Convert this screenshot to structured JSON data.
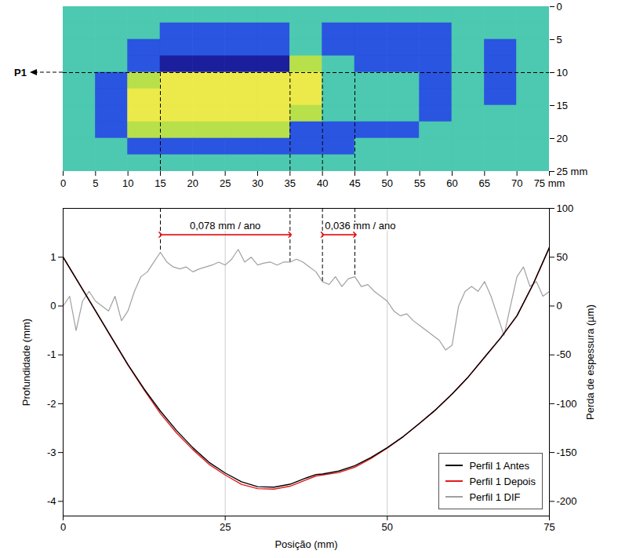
{
  "chart_data": [
    {
      "type": "heatmap",
      "xlim": [
        0,
        75
      ],
      "ylim": [
        0,
        25
      ],
      "xticks": [
        0,
        5,
        10,
        15,
        20,
        25,
        30,
        35,
        40,
        45,
        50,
        55,
        60,
        65,
        70,
        {
          "value": 75,
          "label": "75 mm"
        }
      ],
      "yticks": [
        0,
        5,
        10,
        15,
        20,
        {
          "value": 25,
          "label": "25 mm"
        }
      ],
      "x_bins": [
        0,
        5,
        10,
        15,
        20,
        25,
        30,
        35,
        40,
        45,
        50,
        55,
        60,
        65,
        70,
        75
      ],
      "y_bins": [
        0,
        2.5,
        5,
        7.5,
        10,
        12.5,
        15,
        17.5,
        20,
        22.5,
        25
      ],
      "colors": [
        "#1b1f9e",
        "#2a55e0",
        "#4cc9b0",
        "#b8e04a",
        "#ece94a"
      ],
      "cells": [
        [
          2,
          2,
          2,
          2,
          2,
          2,
          2,
          2,
          2,
          2,
          2,
          2,
          2,
          2,
          2
        ],
        [
          2,
          2,
          2,
          1,
          1,
          1,
          1,
          2,
          1,
          1,
          1,
          1,
          2,
          2,
          2
        ],
        [
          2,
          2,
          1,
          1,
          1,
          1,
          1,
          2,
          1,
          1,
          1,
          1,
          2,
          1,
          2
        ],
        [
          2,
          2,
          1,
          0,
          0,
          0,
          0,
          3,
          2,
          1,
          1,
          1,
          2,
          1,
          2
        ],
        [
          2,
          1,
          3,
          4,
          4,
          4,
          4,
          4,
          2,
          2,
          2,
          1,
          2,
          1,
          2
        ],
        [
          2,
          1,
          4,
          4,
          4,
          4,
          4,
          4,
          2,
          2,
          2,
          1,
          2,
          1,
          2
        ],
        [
          2,
          1,
          4,
          4,
          4,
          4,
          4,
          3,
          2,
          2,
          2,
          1,
          2,
          2,
          2
        ],
        [
          2,
          1,
          3,
          3,
          3,
          3,
          3,
          1,
          1,
          1,
          1,
          2,
          2,
          2,
          2
        ],
        [
          2,
          2,
          1,
          1,
          1,
          1,
          1,
          1,
          1,
          2,
          2,
          2,
          2,
          2,
          2
        ],
        [
          2,
          2,
          2,
          2,
          2,
          2,
          2,
          2,
          2,
          2,
          2,
          2,
          2,
          2,
          2
        ]
      ],
      "reference_line": {
        "label": "P1",
        "y": 10
      },
      "guides": [
        15,
        35,
        40,
        45
      ]
    },
    {
      "type": "line",
      "xlabel": "Posição (mm)",
      "ylabel": "Profundidade (mm)",
      "y2label": "Perda de espessura (µm)",
      "xlim": [
        0,
        75
      ],
      "xticks": [
        0,
        25,
        50,
        75
      ],
      "ylim": [
        -4.3,
        2
      ],
      "yticks": [
        -4,
        -3,
        -2,
        -1,
        0,
        1
      ],
      "y2lim": [
        -215,
        100
      ],
      "y2ticks": [
        -200,
        -150,
        -100,
        -50,
        0,
        50,
        100
      ],
      "grid": true,
      "legend": "lower right",
      "series": [
        {
          "name": "Perfil 1 Antes",
          "color": "#000000",
          "x": [
            0,
            2.5,
            5,
            7.5,
            10,
            12.5,
            15,
            17.5,
            20,
            22.5,
            25,
            27.5,
            30,
            32.5,
            35,
            37.5,
            39,
            40,
            42.5,
            45,
            47.5,
            50,
            52.5,
            55,
            57.5,
            60,
            62.5,
            65,
            67.5,
            70,
            72.5,
            75
          ],
          "values": [
            1.0,
            0.45,
            -0.1,
            -0.65,
            -1.2,
            -1.7,
            -2.15,
            -2.55,
            -2.9,
            -3.2,
            -3.42,
            -3.6,
            -3.7,
            -3.71,
            -3.65,
            -3.52,
            -3.45,
            -3.44,
            -3.38,
            -3.27,
            -3.1,
            -2.9,
            -2.67,
            -2.4,
            -2.12,
            -1.8,
            -1.45,
            -1.05,
            -0.65,
            -0.2,
            0.45,
            1.2
          ]
        },
        {
          "name": "Perfil 1 Depois",
          "color": "#e31a1c",
          "x": [
            0,
            2.5,
            5,
            7.5,
            10,
            12.5,
            15,
            17.5,
            20,
            22.5,
            25,
            27.5,
            30,
            32.5,
            35,
            37.5,
            39,
            40,
            42.5,
            45,
            47.5,
            50,
            52.5,
            55,
            57.5,
            60,
            62.5,
            65,
            67.5,
            70,
            72.5,
            75
          ],
          "values": [
            1.0,
            0.45,
            -0.1,
            -0.66,
            -1.21,
            -1.72,
            -2.2,
            -2.6,
            -2.94,
            -3.24,
            -3.46,
            -3.65,
            -3.74,
            -3.75,
            -3.69,
            -3.56,
            -3.48,
            -3.46,
            -3.41,
            -3.3,
            -3.12,
            -2.91,
            -2.67,
            -2.4,
            -2.12,
            -1.8,
            -1.45,
            -1.05,
            -0.65,
            -0.2,
            0.45,
            1.2
          ]
        },
        {
          "name": "Perfil 1 DIF",
          "color": "#a0a0a0",
          "axis": "y2",
          "x": [
            0,
            1,
            2,
            3,
            4,
            5,
            6,
            7,
            8,
            9,
            10,
            11,
            12,
            13,
            14,
            15,
            16,
            17,
            18,
            19,
            20,
            21,
            22,
            23,
            24,
            25,
            26,
            27,
            28,
            29,
            30,
            31,
            32,
            33,
            34,
            35,
            36,
            37,
            38,
            39,
            40,
            41,
            42,
            43,
            44,
            45,
            46,
            47,
            48,
            49,
            50,
            51,
            52,
            53,
            54,
            55,
            56,
            57,
            58,
            59,
            60,
            61,
            62,
            63,
            64,
            65,
            66,
            67,
            68,
            69,
            70,
            71,
            72,
            73,
            74,
            75
          ],
          "values": [
            0,
            10,
            -25,
            5,
            15,
            5,
            0,
            -5,
            10,
            -15,
            -5,
            15,
            30,
            35,
            45,
            55,
            45,
            40,
            38,
            40,
            35,
            38,
            40,
            42,
            45,
            42,
            48,
            58,
            45,
            50,
            42,
            44,
            45,
            42,
            45,
            45,
            48,
            45,
            40,
            35,
            25,
            22,
            30,
            20,
            28,
            30,
            20,
            22,
            15,
            10,
            5,
            -5,
            -10,
            -8,
            -15,
            -20,
            -25,
            -30,
            -35,
            -45,
            -40,
            0,
            15,
            20,
            15,
            25,
            10,
            -10,
            -30,
            0,
            30,
            40,
            20,
            25,
            10,
            15
          ]
        }
      ],
      "guides": [
        15,
        35,
        40,
        45
      ],
      "annotations": [
        {
          "text": "0,078 mm / ano",
          "x1": 15,
          "x2": 35,
          "y": 73,
          "axis": "y2",
          "color": "#e31a1c"
        },
        {
          "text": "0,036 mm / ano",
          "x1": 40,
          "x2": 45,
          "y": 73,
          "axis": "y2",
          "color": "#e31a1c"
        }
      ]
    }
  ]
}
